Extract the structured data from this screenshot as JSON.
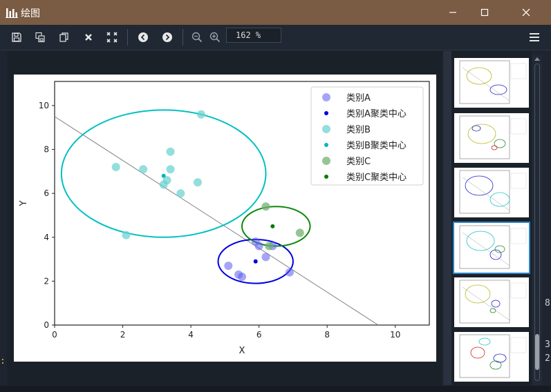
{
  "window": {
    "title": "绘图"
  },
  "toolbar": {
    "zoom_value": "162 %"
  },
  "edge": {
    "text1": "8",
    "text2": "3",
    "text3": "2",
    "colon": ":"
  },
  "chart_data": {
    "type": "scatter",
    "xlabel": "X",
    "ylabel": "Y",
    "xlim": [
      0,
      11
    ],
    "ylim": [
      0,
      11.1
    ],
    "xticks": [
      "0",
      "2",
      "4",
      "6",
      "8",
      "10"
    ],
    "yticks": [
      "0",
      "2",
      "4",
      "6",
      "8",
      "10"
    ],
    "legend_position": "top-right",
    "legend": [
      "类别A",
      "类别A聚类中心",
      "类别B",
      "类别B聚类中心",
      "类别C",
      "类别C聚类中心"
    ],
    "colors": {
      "A": "#5b5bf0",
      "A_center": "#0000dd",
      "B": "#66d0d0",
      "B_center": "#00b8b8",
      "C": "#72b272",
      "C_center": "#0a7a0a",
      "line": "#808080"
    },
    "series": [
      {
        "name": "类别A",
        "points": [
          [
            5.1,
            2.7
          ],
          [
            5.4,
            2.3
          ],
          [
            5.5,
            2.2
          ],
          [
            5.9,
            3.8
          ],
          [
            6.0,
            3.6
          ],
          [
            6.2,
            3.1
          ],
          [
            6.4,
            3.6
          ],
          [
            6.9,
            2.4
          ]
        ]
      },
      {
        "name": "类别A聚类中心",
        "points": [
          [
            5.9,
            2.9
          ]
        ]
      },
      {
        "name": "类别B",
        "points": [
          [
            1.8,
            7.2
          ],
          [
            2.1,
            4.1
          ],
          [
            2.6,
            7.1
          ],
          [
            3.2,
            6.4
          ],
          [
            3.3,
            6.6
          ],
          [
            3.4,
            7.1
          ],
          [
            3.4,
            7.9
          ],
          [
            3.7,
            6.0
          ],
          [
            4.2,
            6.5
          ],
          [
            4.3,
            9.6
          ]
        ]
      },
      {
        "name": "类别B聚类中心",
        "points": [
          [
            3.2,
            6.8
          ]
        ]
      },
      {
        "name": "类别C",
        "points": [
          [
            6.2,
            5.4
          ],
          [
            6.3,
            3.6
          ],
          [
            7.2,
            4.2
          ]
        ]
      },
      {
        "name": "类别C聚类中心",
        "points": [
          [
            6.4,
            4.5
          ]
        ]
      }
    ],
    "ellipses": [
      {
        "series": "类别A",
        "cx": 5.9,
        "cy": 2.9,
        "rx": 1.1,
        "ry": 1.0,
        "color": "#0000dd"
      },
      {
        "series": "类别B",
        "cx": 3.2,
        "cy": 6.9,
        "rx": 3.0,
        "ry": 2.9,
        "color": "#00c0c0"
      },
      {
        "series": "类别C",
        "cx": 6.5,
        "cy": 4.5,
        "rx": 1.0,
        "ry": 0.9,
        "color": "#0a8a0a"
      }
    ],
    "line": {
      "x": [
        0,
        9.5
      ],
      "y": [
        9.5,
        0
      ]
    }
  }
}
